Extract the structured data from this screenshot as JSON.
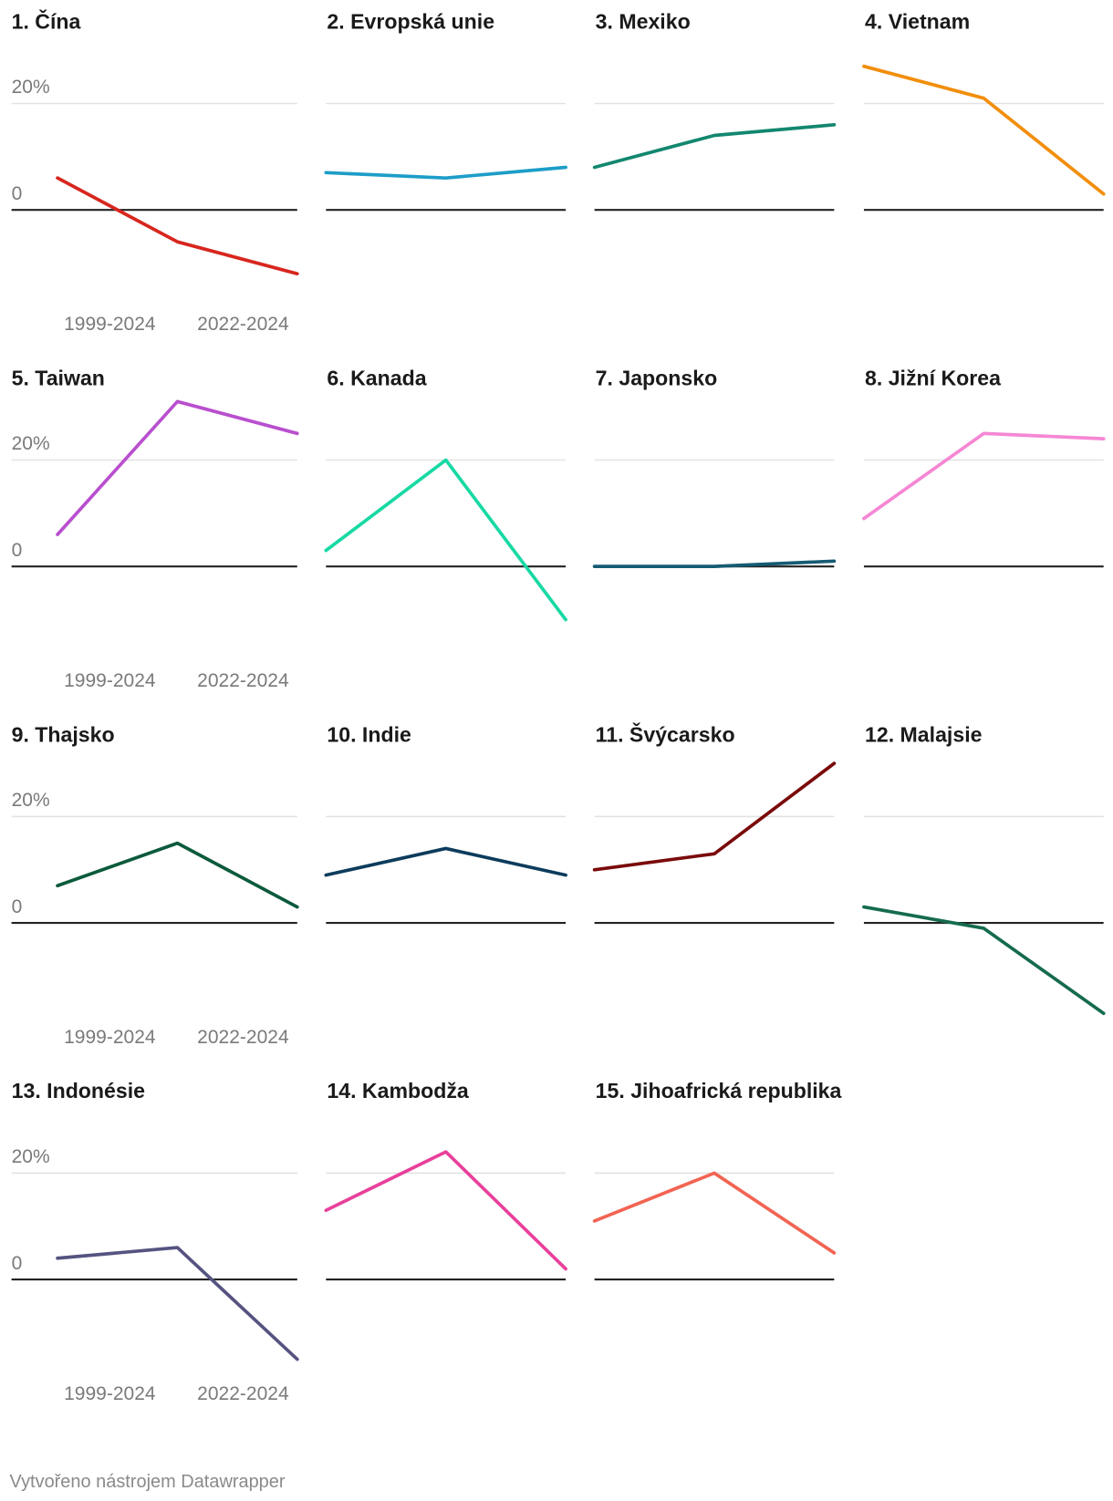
{
  "chart_data": {
    "type": "line",
    "ylim": [
      -17,
      31
    ],
    "yticks": [
      0,
      {
        "value": 20,
        "label": "20%"
      }
    ],
    "x_labels": [
      "1999-2024",
      "2022-2024"
    ],
    "panels": [
      {
        "title": "1. Čína",
        "color": "#d7261e",
        "values": [
          6,
          -6,
          -12
        ]
      },
      {
        "title": "2. Evropská unie",
        "color": "#1d9dc8",
        "values": [
          7,
          6,
          8
        ]
      },
      {
        "title": "3. Mexiko",
        "color": "#12876f",
        "values": [
          8,
          14,
          16
        ]
      },
      {
        "title": "4. Vietnam",
        "color": "#f28e0b",
        "values": [
          27,
          21,
          3
        ]
      },
      {
        "title": "5. Taiwan",
        "color": "#b94fcf",
        "values": [
          6,
          31,
          25
        ]
      },
      {
        "title": "6. Kanada",
        "color": "#17d9a3",
        "values": [
          3,
          20,
          -10
        ]
      },
      {
        "title": "7. Japonsko",
        "color": "#155b73",
        "values": [
          0,
          0,
          1
        ]
      },
      {
        "title": "8. Jižní Korea",
        "color": "#f587d4",
        "values": [
          9,
          25,
          24
        ]
      },
      {
        "title": "9. Thajsko",
        "color": "#0c5a3c",
        "values": [
          7,
          15,
          3
        ]
      },
      {
        "title": "10. Indie",
        "color": "#0d3b5c",
        "values": [
          9,
          14,
          9
        ]
      },
      {
        "title": "11. Švýcarsko",
        "color": "#7a0a0a",
        "values": [
          10,
          13,
          30
        ]
      },
      {
        "title": "12. Malajsie",
        "color": "#156b4d",
        "values": [
          3,
          -1,
          -17
        ]
      },
      {
        "title": "13. Indonésie",
        "color": "#555380",
        "values": [
          4,
          6,
          -15
        ]
      },
      {
        "title": "14. Kambodža",
        "color": "#e8409b",
        "values": [
          13,
          24,
          2
        ]
      },
      {
        "title": "15. Jihoafrická republika",
        "color": "#f26452",
        "values": [
          11,
          20,
          5
        ]
      }
    ]
  },
  "footer": "Vytvořeno nástrojem Datawrapper"
}
